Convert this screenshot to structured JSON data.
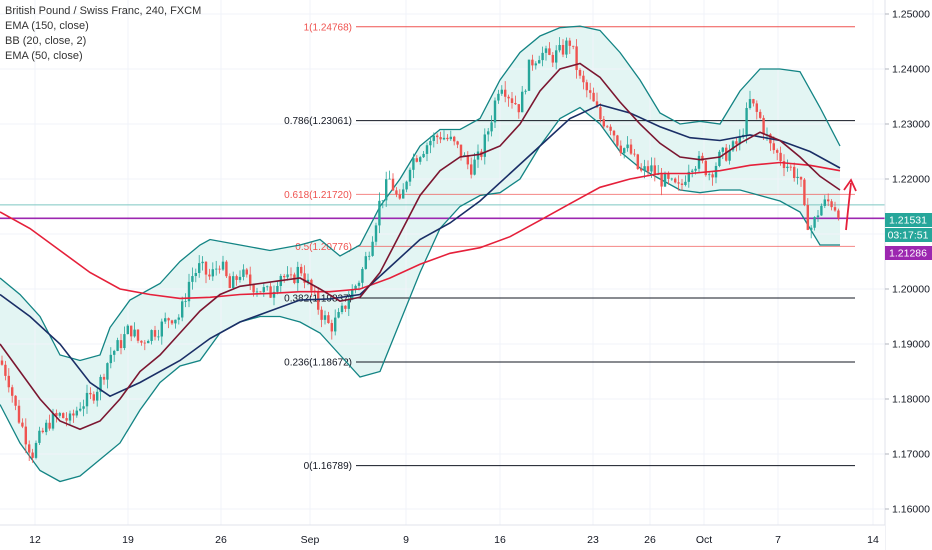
{
  "legend": {
    "title": "British Pound / Swiss Franc, 240, FXCM",
    "ema150": "EMA (150, close)",
    "bb": "BB (20, close, 2)",
    "ema50": "EMA (50, close)"
  },
  "chart_data": {
    "type": "candlestick",
    "ylim": [
      1.156,
      1.256
    ],
    "y_ticks": [
      "1.25000",
      "1.24000",
      "1.23000",
      "1.22000",
      "1.21000",
      "1.20000",
      "1.19000",
      "1.18000",
      "1.17000",
      "1.16000"
    ],
    "x_ticks": [
      "12",
      "19",
      "26",
      "Sep",
      "9",
      "16",
      "23",
      "26",
      "Oct",
      "7",
      "14"
    ],
    "price_labels": {
      "last": "1.21531",
      "countdown": "03:17:51",
      "horizontal_line": "1.21286"
    },
    "fib_levels": [
      {
        "label": "1(1.24768)",
        "value": 1.24768
      },
      {
        "label": "0.786(1.23061)",
        "value": 1.23061
      },
      {
        "label": "0.618(1.21720)",
        "value": 1.2172
      },
      {
        "label": "0.5(1.20776)",
        "value": 1.20776
      },
      {
        "label": "0.382(1.19837)",
        "value": 1.19837
      },
      {
        "label": "0.236(1.18672)",
        "value": 1.18672
      },
      {
        "label": "0(1.16789)",
        "value": 1.16789
      }
    ],
    "price_path": [
      [
        0,
        1.187
      ],
      [
        8,
        1.184
      ],
      [
        16,
        1.178
      ],
      [
        24,
        1.174
      ],
      [
        32,
        1.17
      ],
      [
        40,
        1.173
      ],
      [
        50,
        1.176
      ],
      [
        60,
        1.177
      ],
      [
        70,
        1.176
      ],
      [
        80,
        1.179
      ],
      [
        90,
        1.18
      ],
      [
        100,
        1.183
      ],
      [
        110,
        1.188
      ],
      [
        120,
        1.19
      ],
      [
        130,
        1.193
      ],
      [
        140,
        1.19
      ],
      [
        150,
        1.192
      ],
      [
        160,
        1.193
      ],
      [
        170,
        1.195
      ],
      [
        180,
        1.195
      ],
      [
        190,
        1.202
      ],
      [
        200,
        1.204
      ],
      [
        210,
        1.202
      ],
      [
        220,
        1.205
      ],
      [
        230,
        1.2
      ],
      [
        240,
        1.203
      ],
      [
        250,
        1.201
      ],
      [
        260,
        1.2
      ],
      [
        270,
        1.199
      ],
      [
        280,
        1.203
      ],
      [
        290,
        1.201
      ],
      [
        300,
        1.204
      ],
      [
        310,
        1.2
      ],
      [
        320,
        1.196
      ],
      [
        330,
        1.193
      ],
      [
        340,
        1.195
      ],
      [
        350,
        1.199
      ],
      [
        360,
        1.202
      ],
      [
        370,
        1.208
      ],
      [
        380,
        1.216
      ],
      [
        390,
        1.22
      ],
      [
        400,
        1.215
      ],
      [
        410,
        1.223
      ],
      [
        420,
        1.225
      ],
      [
        430,
        1.227
      ],
      [
        440,
        1.228
      ],
      [
        450,
        1.227
      ],
      [
        460,
        1.225
      ],
      [
        470,
        1.222
      ],
      [
        480,
        1.224
      ],
      [
        490,
        1.23
      ],
      [
        500,
        1.238
      ],
      [
        510,
        1.235
      ],
      [
        520,
        1.233
      ],
      [
        530,
        1.241
      ],
      [
        540,
        1.243
      ],
      [
        550,
        1.242
      ],
      [
        560,
        1.243
      ],
      [
        570,
        1.245
      ],
      [
        580,
        1.238
      ],
      [
        590,
        1.235
      ],
      [
        600,
        1.231
      ],
      [
        610,
        1.23
      ],
      [
        620,
        1.226
      ],
      [
        630,
        1.225
      ],
      [
        640,
        1.221
      ],
      [
        650,
        1.222
      ],
      [
        660,
        1.22
      ],
      [
        670,
        1.219
      ],
      [
        680,
        1.218
      ],
      [
        690,
        1.223
      ],
      [
        700,
        1.223
      ],
      [
        710,
        1.221
      ],
      [
        720,
        1.224
      ],
      [
        730,
        1.225
      ],
      [
        740,
        1.227
      ],
      [
        750,
        1.234
      ],
      [
        760,
        1.231
      ],
      [
        770,
        1.226
      ],
      [
        780,
        1.224
      ],
      [
        790,
        1.222
      ],
      [
        800,
        1.22
      ],
      [
        805,
        1.213
      ],
      [
        812,
        1.211
      ],
      [
        820,
        1.215
      ],
      [
        830,
        1.216
      ],
      [
        840,
        1.214
      ]
    ],
    "series": [
      {
        "name": "EMA (150, close)",
        "color": "#e5203a",
        "points": [
          [
            0,
            1.214
          ],
          [
            30,
            1.211
          ],
          [
            60,
            1.207
          ],
          [
            90,
            1.203
          ],
          [
            120,
            1.2
          ],
          [
            150,
            1.199
          ],
          [
            180,
            1.1983
          ],
          [
            210,
            1.1985
          ],
          [
            240,
            1.199
          ],
          [
            270,
            1.1992
          ],
          [
            300,
            1.1995
          ],
          [
            330,
            1.1995
          ],
          [
            360,
            1.2
          ],
          [
            390,
            1.202
          ],
          [
            420,
            1.2045
          ],
          [
            450,
            1.2065
          ],
          [
            480,
            1.2075
          ],
          [
            510,
            1.2095
          ],
          [
            540,
            1.2125
          ],
          [
            570,
            1.2155
          ],
          [
            600,
            1.2185
          ],
          [
            630,
            1.22
          ],
          [
            660,
            1.221
          ],
          [
            690,
            1.221
          ],
          [
            720,
            1.2215
          ],
          [
            750,
            1.2225
          ],
          [
            780,
            1.223
          ],
          [
            810,
            1.2225
          ],
          [
            840,
            1.2215
          ]
        ]
      },
      {
        "name": "EMA (50, close)",
        "color": "#1a2e66",
        "points": [
          [
            0,
            1.199
          ],
          [
            30,
            1.195
          ],
          [
            60,
            1.19
          ],
          [
            90,
            1.183
          ],
          [
            110,
            1.1805
          ],
          [
            140,
            1.183
          ],
          [
            180,
            1.187
          ],
          [
            210,
            1.191
          ],
          [
            240,
            1.194
          ],
          [
            270,
            1.196
          ],
          [
            300,
            1.198
          ],
          [
            330,
            1.1982
          ],
          [
            360,
            1.199
          ],
          [
            390,
            1.204
          ],
          [
            420,
            1.209
          ],
          [
            450,
            1.212
          ],
          [
            480,
            1.216
          ],
          [
            510,
            1.221
          ],
          [
            540,
            1.226
          ],
          [
            570,
            1.231
          ],
          [
            600,
            1.2335
          ],
          [
            630,
            1.232
          ],
          [
            660,
            1.2295
          ],
          [
            690,
            1.2275
          ],
          [
            720,
            1.227
          ],
          [
            750,
            1.228
          ],
          [
            780,
            1.227
          ],
          [
            810,
            1.225
          ],
          [
            840,
            1.222
          ]
        ]
      },
      {
        "name": "BB basis",
        "color": "#7b1630",
        "points": [
          [
            0,
            1.19
          ],
          [
            20,
            1.185
          ],
          [
            40,
            1.18
          ],
          [
            60,
            1.176
          ],
          [
            80,
            1.1745
          ],
          [
            100,
            1.176
          ],
          [
            120,
            1.18
          ],
          [
            140,
            1.185
          ],
          [
            160,
            1.188
          ],
          [
            180,
            1.192
          ],
          [
            200,
            1.196
          ],
          [
            220,
            1.199
          ],
          [
            240,
            1.2005
          ],
          [
            260,
            1.201
          ],
          [
            280,
            1.2015
          ],
          [
            300,
            1.202
          ],
          [
            320,
            1.2
          ],
          [
            340,
            1.1978
          ],
          [
            360,
            1.1985
          ],
          [
            380,
            1.203
          ],
          [
            400,
            1.21
          ],
          [
            420,
            1.217
          ],
          [
            440,
            1.2215
          ],
          [
            460,
            1.224
          ],
          [
            480,
            1.2245
          ],
          [
            500,
            1.226
          ],
          [
            520,
            1.23
          ],
          [
            540,
            1.236
          ],
          [
            560,
            1.24
          ],
          [
            580,
            1.241
          ],
          [
            600,
            1.2385
          ],
          [
            620,
            1.234
          ],
          [
            640,
            1.23
          ],
          [
            660,
            1.2265
          ],
          [
            680,
            1.224
          ],
          [
            700,
            1.2235
          ],
          [
            720,
            1.224
          ],
          [
            740,
            1.2265
          ],
          [
            760,
            1.2285
          ],
          [
            780,
            1.227
          ],
          [
            800,
            1.224
          ],
          [
            820,
            1.2205
          ],
          [
            840,
            1.218
          ]
        ]
      }
    ],
    "bb_upper": [
      [
        0,
        1.202
      ],
      [
        20,
        1.199
      ],
      [
        40,
        1.195
      ],
      [
        60,
        1.188
      ],
      [
        80,
        1.187
      ],
      [
        100,
        1.188
      ],
      [
        110,
        1.193
      ],
      [
        130,
        1.198
      ],
      [
        160,
        1.201
      ],
      [
        180,
        1.205
      ],
      [
        200,
        1.208
      ],
      [
        210,
        1.209
      ],
      [
        240,
        1.208
      ],
      [
        270,
        1.207
      ],
      [
        300,
        1.208
      ],
      [
        320,
        1.209
      ],
      [
        340,
        1.206
      ],
      [
        360,
        1.208
      ],
      [
        380,
        1.215
      ],
      [
        400,
        1.22
      ],
      [
        420,
        1.226
      ],
      [
        440,
        1.229
      ],
      [
        460,
        1.229
      ],
      [
        480,
        1.231
      ],
      [
        500,
        1.238
      ],
      [
        520,
        1.243
      ],
      [
        540,
        1.246
      ],
      [
        560,
        1.2475
      ],
      [
        580,
        1.2478
      ],
      [
        600,
        1.247
      ],
      [
        620,
        1.243
      ],
      [
        640,
        1.238
      ],
      [
        660,
        1.232
      ],
      [
        680,
        1.23
      ],
      [
        700,
        1.2305
      ],
      [
        720,
        1.23
      ],
      [
        740,
        1.236
      ],
      [
        760,
        1.24
      ],
      [
        780,
        1.24
      ],
      [
        800,
        1.2395
      ],
      [
        820,
        1.233
      ],
      [
        840,
        1.226
      ]
    ],
    "bb_lower": [
      [
        0,
        1.179
      ],
      [
        20,
        1.172
      ],
      [
        40,
        1.167
      ],
      [
        60,
        1.165
      ],
      [
        80,
        1.166
      ],
      [
        100,
        1.169
      ],
      [
        120,
        1.172
      ],
      [
        140,
        1.178
      ],
      [
        160,
        1.183
      ],
      [
        180,
        1.186
      ],
      [
        200,
        1.187
      ],
      [
        220,
        1.192
      ],
      [
        240,
        1.194
      ],
      [
        260,
        1.195
      ],
      [
        280,
        1.195
      ],
      [
        300,
        1.194
      ],
      [
        320,
        1.192
      ],
      [
        340,
        1.188
      ],
      [
        360,
        1.184
      ],
      [
        380,
        1.185
      ],
      [
        400,
        1.194
      ],
      [
        420,
        1.203
      ],
      [
        440,
        1.211
      ],
      [
        460,
        1.215
      ],
      [
        480,
        1.217
      ],
      [
        500,
        1.2175
      ],
      [
        520,
        1.22
      ],
      [
        540,
        1.226
      ],
      [
        560,
        1.231
      ],
      [
        580,
        1.233
      ],
      [
        600,
        1.23
      ],
      [
        620,
        1.225
      ],
      [
        640,
        1.222
      ],
      [
        660,
        1.22
      ],
      [
        680,
        1.218
      ],
      [
        700,
        1.2175
      ],
      [
        720,
        1.218
      ],
      [
        740,
        1.218
      ],
      [
        760,
        1.217
      ],
      [
        780,
        1.216
      ],
      [
        800,
        1.214
      ],
      [
        820,
        1.208
      ],
      [
        840,
        1.208
      ]
    ],
    "colors": {
      "bullish": "#26a69a",
      "bearish": "#ef5350",
      "fib": "#131722",
      "fib_upper": "#ef5350",
      "bb_band": "#138484",
      "bb_fill": "#d9f1ef",
      "hline": "#9c27b0",
      "cursor": "#7ec8c2"
    }
  }
}
